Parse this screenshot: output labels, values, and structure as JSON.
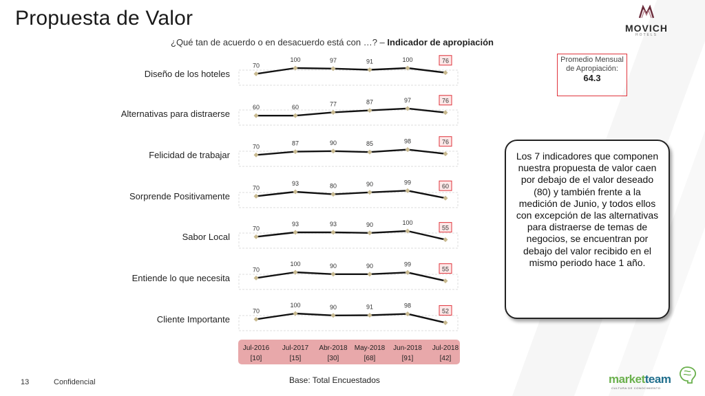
{
  "header": {
    "title": "Propuesta de Valor",
    "question": "¿Qué tan de acuerdo o en desacuerdo está con …? –",
    "question_bold": "Indicador de apropiación"
  },
  "brand": {
    "name": "MOVICH",
    "sub": "HOTELS"
  },
  "chart_data": {
    "type": "line",
    "x": [
      "Jul-2016",
      "Jul-2017",
      "Abr-2018",
      "May-2018",
      "Jun-2018",
      "Jul-2018"
    ],
    "x_counts": [
      "[10]",
      "[15]",
      "[30]",
      "[68]",
      "[91]",
      "[42]"
    ],
    "series": [
      {
        "name": "Diseño de los hoteles",
        "values": [
          70,
          100,
          97,
          91,
          100,
          76
        ]
      },
      {
        "name": "Alternativas para distraerse",
        "values": [
          60,
          60,
          77,
          87,
          97,
          76
        ]
      },
      {
        "name": "Felicidad de trabajar",
        "values": [
          70,
          87,
          90,
          85,
          98,
          76
        ]
      },
      {
        "name": "Sorprende Positivamente",
        "values": [
          70,
          93,
          80,
          90,
          99,
          60
        ]
      },
      {
        "name": "Sabor Local",
        "values": [
          70,
          93,
          93,
          90,
          100,
          55
        ]
      },
      {
        "name": "Entiende lo que necesita",
        "values": [
          70,
          100,
          90,
          90,
          99,
          55
        ]
      },
      {
        "name": "Cliente Importante",
        "values": [
          70,
          100,
          90,
          91,
          98,
          52
        ]
      }
    ],
    "ylim": [
      0,
      100
    ],
    "colors": {
      "line": "#111111",
      "marker": "#c8b98f",
      "highlight": "#e0333b",
      "axis_band": "#e8a8aa",
      "row_band": "#e9e9e9",
      "positive_fill": "#eaf5df",
      "negative_fill": "#fde8e8"
    }
  },
  "promedio": {
    "label": "Promedio Mensual de Apropiación:",
    "value": "64.3"
  },
  "callout": "Los 7 indicadores que componen nuestra propuesta de valor caen por debajo de el valor deseado (80) y también frente a la medición de Junio, y todos ellos con excepción de las alternativas para distraerse de temas de negocios, se encuentran por debajo del valor recibido en el mismo periodo hace 1 año.",
  "footer": {
    "page_number": "13",
    "confidential": "Confidencial",
    "base": "Base: Total Encuestados",
    "partner": {
      "a": "market",
      "b": "team",
      "sub": "CULTURA DE CONOCIMIENTO"
    }
  }
}
